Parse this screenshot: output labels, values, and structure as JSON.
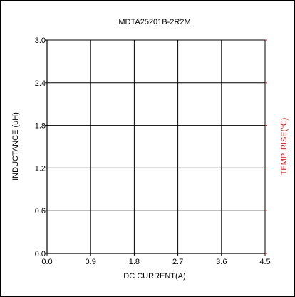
{
  "chart_data": {
    "type": "line",
    "title": "MDTA25201B-2R2M",
    "xlabel": "DC CURRENT(A)",
    "ylabel": "INDUCTANCE (uH)",
    "y2label": "TEMP. RISE(℃)",
    "xlim": [
      0,
      4.5
    ],
    "ylim": [
      0,
      3.0
    ],
    "x_ticks": [
      "0.0",
      "0.9",
      "1.8",
      "2.7",
      "3.6",
      "4.5"
    ],
    "y_ticks": [
      "0.0",
      "0.6",
      "1.2",
      "1.8",
      "2.4",
      "3.0"
    ],
    "grid": true,
    "series": [],
    "colors": {
      "grid": "#000000",
      "axis": "#000000",
      "right_axis": "#cc2222",
      "right_label": "#cc2222",
      "text": "#000000"
    }
  }
}
